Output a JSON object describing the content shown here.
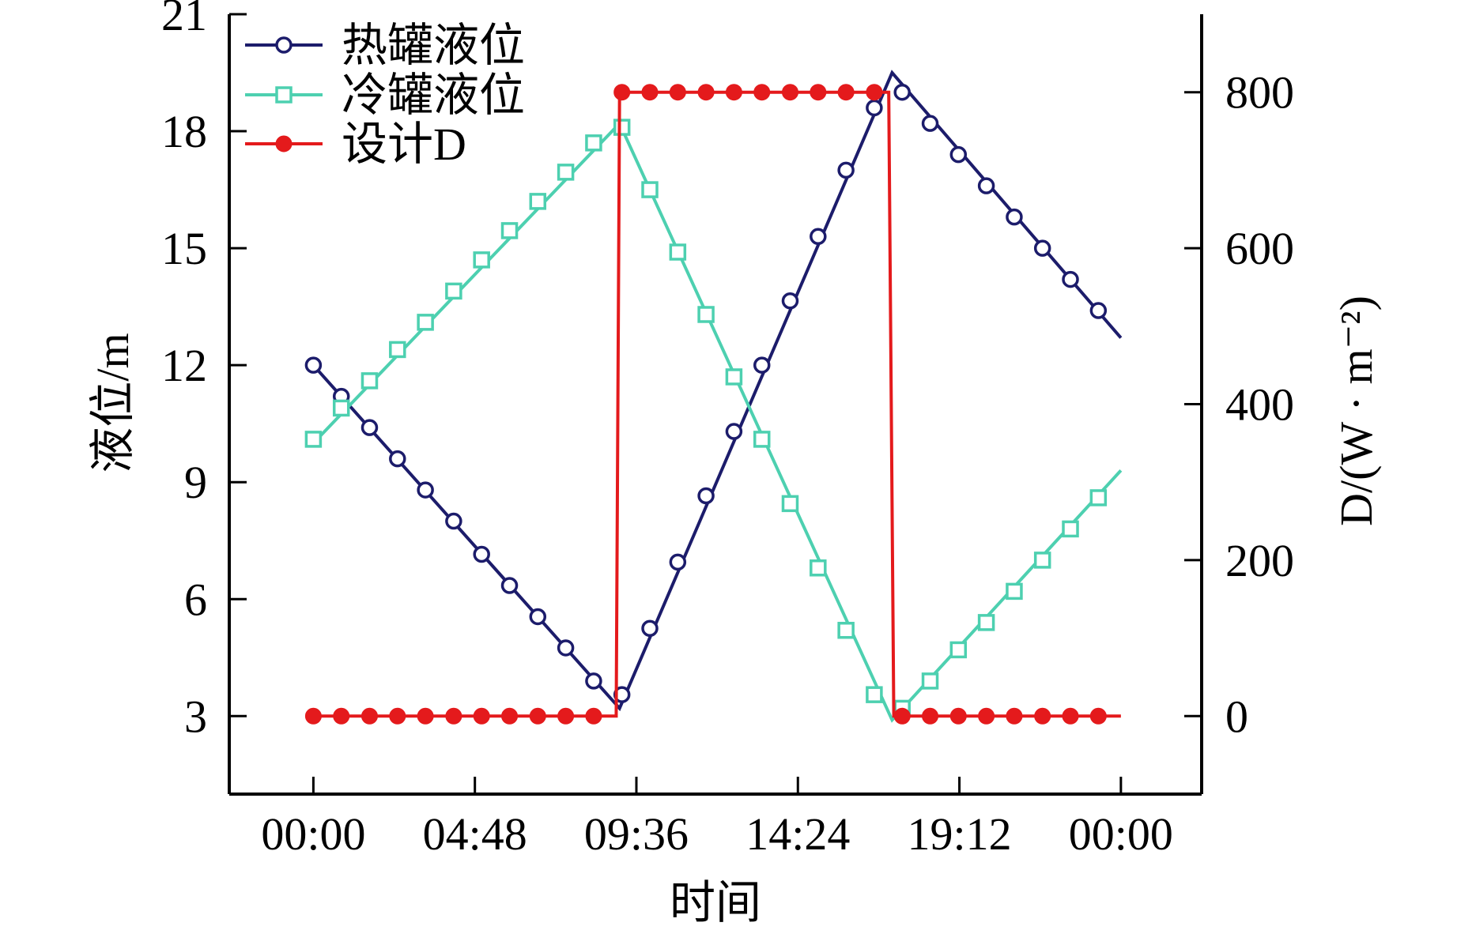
{
  "chart_data": {
    "type": "line",
    "title": "",
    "xlabel": "时间",
    "ylabel_left": "液位/m",
    "ylabel_right": "D/(W · m⁻²)",
    "x_tick_labels": [
      "00:00",
      "04:48",
      "09:36",
      "14:24",
      "19:12",
      "00:00"
    ],
    "x_tick_hours": [
      0,
      4.8,
      9.6,
      14.4,
      19.2,
      24
    ],
    "y_left_ticks": [
      3,
      6,
      9,
      12,
      15,
      18,
      21
    ],
    "y_right_ticks": [
      0,
      200,
      400,
      600,
      800
    ],
    "y_left_range": [
      1,
      21
    ],
    "y_right_range": [
      -100,
      900
    ],
    "x_range": [
      -2.5,
      26.4
    ],
    "grid": false,
    "legend_position": "top-left",
    "series": [
      {
        "name": "热罐液位",
        "axis": "left",
        "color": "#1c1c6b",
        "marker": "circle-open",
        "line_x": [
          0,
          9.1,
          17.2,
          24
        ],
        "line_y": [
          12.0,
          3.2,
          19.5,
          12.7
        ],
        "points_x": [
          0,
          0.83,
          1.67,
          2.5,
          3.33,
          4.17,
          5.0,
          5.83,
          6.67,
          7.5,
          8.33,
          9.17,
          10.0,
          10.83,
          11.67,
          12.5,
          13.33,
          14.17,
          15.0,
          15.83,
          16.67,
          17.5,
          18.33,
          19.17,
          20.0,
          20.83,
          21.67,
          22.5,
          23.33
        ],
        "points_y": [
          12.0,
          11.2,
          10.4,
          9.6,
          8.8,
          8.0,
          7.15,
          6.35,
          5.55,
          4.75,
          3.9,
          3.55,
          5.25,
          6.95,
          8.65,
          10.3,
          12.0,
          13.65,
          15.3,
          17.0,
          18.6,
          19.0,
          18.2,
          17.4,
          16.6,
          15.8,
          15.0,
          14.2,
          13.4
        ]
      },
      {
        "name": "冷罐液位",
        "axis": "left",
        "color": "#4dd0b0",
        "marker": "square-open",
        "line_x": [
          0,
          9.1,
          17.2,
          24
        ],
        "line_y": [
          10.0,
          18.2,
          2.9,
          9.3
        ],
        "points_x": [
          0,
          0.83,
          1.67,
          2.5,
          3.33,
          4.17,
          5.0,
          5.83,
          6.67,
          7.5,
          8.33,
          9.17,
          10.0,
          10.83,
          11.67,
          12.5,
          13.33,
          14.17,
          15.0,
          15.83,
          16.67,
          17.5,
          18.33,
          19.17,
          20.0,
          20.83,
          21.67,
          22.5,
          23.33
        ],
        "points_y": [
          10.1,
          10.9,
          11.6,
          12.4,
          13.1,
          13.9,
          14.7,
          15.45,
          16.2,
          16.95,
          17.7,
          18.1,
          16.5,
          14.9,
          13.3,
          11.7,
          10.1,
          8.45,
          6.8,
          5.2,
          3.55,
          3.2,
          3.9,
          4.7,
          5.4,
          6.2,
          7.0,
          7.8,
          8.6
        ]
      },
      {
        "name": "设计D",
        "axis": "right",
        "color": "#e41a1c",
        "marker": "circle-filled",
        "line_x": [
          0,
          9.0,
          9.1,
          17.1,
          17.25,
          24
        ],
        "line_y": [
          0,
          0,
          800,
          800,
          0,
          0
        ],
        "points_x": [
          0,
          0.83,
          1.67,
          2.5,
          3.33,
          4.17,
          5.0,
          5.83,
          6.67,
          7.5,
          8.33,
          9.17,
          10.0,
          10.83,
          11.67,
          12.5,
          13.33,
          14.17,
          15.0,
          15.83,
          16.67,
          17.5,
          18.33,
          19.17,
          20.0,
          20.83,
          21.67,
          22.5,
          23.33
        ],
        "points_y": [
          0,
          0,
          0,
          0,
          0,
          0,
          0,
          0,
          0,
          0,
          0,
          800,
          800,
          800,
          800,
          800,
          800,
          800,
          800,
          800,
          800,
          0,
          0,
          0,
          0,
          0,
          0,
          0,
          0
        ]
      }
    ]
  }
}
